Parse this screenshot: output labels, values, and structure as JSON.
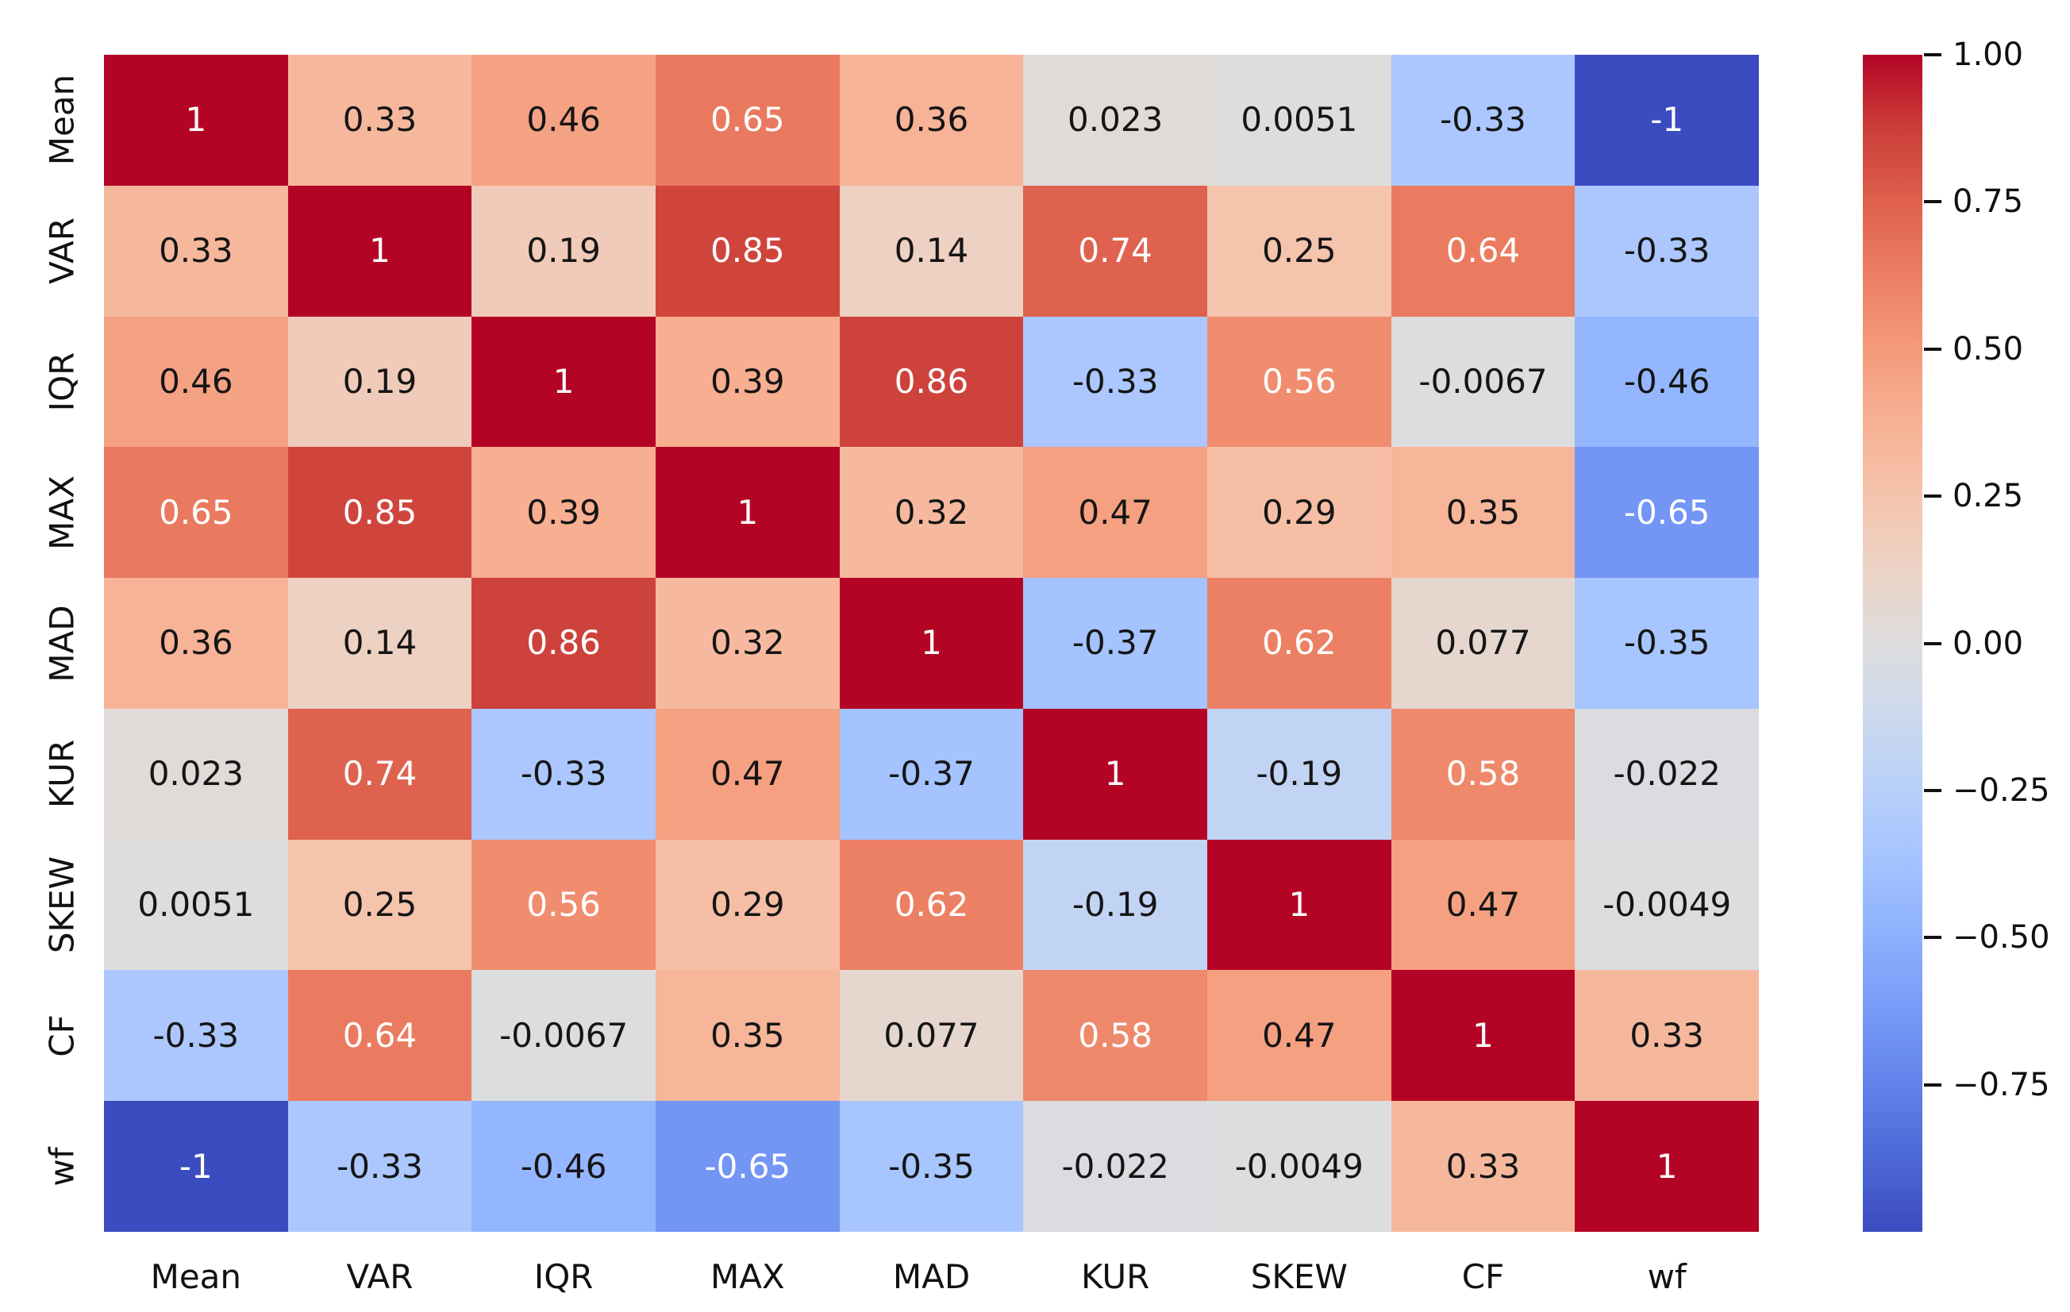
{
  "chart_data": {
    "type": "heatmap",
    "title": "",
    "xlabel": "",
    "ylabel": "",
    "categories": [
      "Mean",
      "VAR",
      "IQR",
      "MAX",
      "MAD",
      "KUR",
      "SKEW",
      "CF",
      "wf"
    ],
    "matrix": [
      [
        1,
        0.33,
        0.46,
        0.65,
        0.36,
        0.023,
        0.0051,
        -0.33,
        -1
      ],
      [
        0.33,
        1,
        0.19,
        0.85,
        0.14,
        0.74,
        0.25,
        0.64,
        -0.33
      ],
      [
        0.46,
        0.19,
        1,
        0.39,
        0.86,
        -0.33,
        0.56,
        -0.0067,
        -0.46
      ],
      [
        0.65,
        0.85,
        0.39,
        1,
        0.32,
        0.47,
        0.29,
        0.35,
        -0.65
      ],
      [
        0.36,
        0.14,
        0.86,
        0.32,
        1,
        -0.37,
        0.62,
        0.077,
        -0.35
      ],
      [
        0.023,
        0.74,
        -0.33,
        0.47,
        -0.37,
        1,
        -0.19,
        0.58,
        -0.022
      ],
      [
        0.0051,
        0.25,
        0.56,
        0.29,
        0.62,
        -0.19,
        1,
        0.47,
        -0.0049
      ],
      [
        -0.33,
        0.64,
        -0.0067,
        0.35,
        0.077,
        0.58,
        0.47,
        1,
        0.33
      ],
      [
        -1,
        -0.33,
        -0.46,
        -0.65,
        -0.35,
        -0.022,
        -0.0049,
        0.33,
        1
      ]
    ],
    "annotations": [
      [
        "1",
        "0.33",
        "0.46",
        "0.65",
        "0.36",
        "0.023",
        "0.0051",
        "-0.33",
        "-1"
      ],
      [
        "0.33",
        "1",
        "0.19",
        "0.85",
        "0.14",
        "0.74",
        "0.25",
        "0.64",
        "-0.33"
      ],
      [
        "0.46",
        "0.19",
        "1",
        "0.39",
        "0.86",
        "-0.33",
        "0.56",
        "-0.0067",
        "-0.46"
      ],
      [
        "0.65",
        "0.85",
        "0.39",
        "1",
        "0.32",
        "0.47",
        "0.29",
        "0.35",
        "-0.65"
      ],
      [
        "0.36",
        "0.14",
        "0.86",
        "0.32",
        "1",
        "-0.37",
        "0.62",
        "0.077",
        "-0.35"
      ],
      [
        "0.023",
        "0.74",
        "-0.33",
        "0.47",
        "-0.37",
        "1",
        "-0.19",
        "0.58",
        "-0.022"
      ],
      [
        "0.0051",
        "0.25",
        "0.56",
        "0.29",
        "0.62",
        "-0.19",
        "1",
        "0.47",
        "-0.0049"
      ],
      [
        "-0.33",
        "0.64",
        "-0.0067",
        "0.35",
        "0.077",
        "0.58",
        "0.47",
        "1",
        "0.33"
      ],
      [
        "-1",
        "-0.33",
        "-0.46",
        "-0.65",
        "-0.35",
        "-0.022",
        "-0.0049",
        "0.33",
        "1"
      ]
    ],
    "colormap": {
      "name": "coolwarm",
      "vmin": -1,
      "vmax": 1,
      "stops": [
        {
          "t": -1.0,
          "color": "#3b4cc0"
        },
        {
          "t": -0.875,
          "color": "#4d68d7"
        },
        {
          "t": -0.75,
          "color": "#6282ea"
        },
        {
          "t": -0.625,
          "color": "#779af7"
        },
        {
          "t": -0.5,
          "color": "#8db0fe"
        },
        {
          "t": -0.375,
          "color": "#a3c2ff"
        },
        {
          "t": -0.25,
          "color": "#b8d0f9"
        },
        {
          "t": -0.125,
          "color": "#ccd9ee"
        },
        {
          "t": 0.0,
          "color": "#dddddd"
        },
        {
          "t": 0.125,
          "color": "#ecd3c5"
        },
        {
          "t": 0.25,
          "color": "#f5c4ad"
        },
        {
          "t": 0.375,
          "color": "#f7b194"
        },
        {
          "t": 0.5,
          "color": "#f49a7b"
        },
        {
          "t": 0.625,
          "color": "#ec7f63"
        },
        {
          "t": 0.75,
          "color": "#de604d"
        },
        {
          "t": 0.875,
          "color": "#cb3e38"
        },
        {
          "t": 1.0,
          "color": "#b40426"
        }
      ]
    },
    "colorbar": {
      "tick_labels": [
        "1.00",
        "0.75",
        "0.50",
        "0.25",
        "0.00",
        "−0.25",
        "−0.50",
        "−0.75"
      ],
      "tick_values": [
        1.0,
        0.75,
        0.5,
        0.25,
        0.0,
        -0.25,
        -0.5,
        -0.75
      ],
      "position": "right"
    },
    "annotation_colors": {
      "dark": "#151515",
      "light": "#ffffff"
    },
    "luminance_threshold": 0.408,
    "grid": false,
    "legend_position": "none"
  }
}
